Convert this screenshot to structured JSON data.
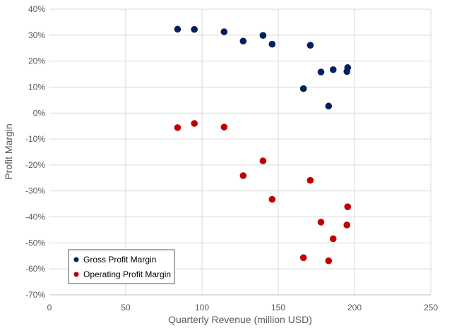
{
  "chart_data": {
    "type": "scatter",
    "xlabel": "Quarterly Revenue (million USD)",
    "ylabel": "Profit Margin",
    "xlim": [
      0,
      250
    ],
    "ylim": [
      -70,
      40
    ],
    "x_ticks": [
      "0",
      "50",
      "100",
      "150",
      "200",
      "250"
    ],
    "y_ticks": [
      "-70%",
      "-60%",
      "-50%",
      "-40%",
      "-30%",
      "-20%",
      "-10%",
      "0%",
      "10%",
      "20%",
      "30%",
      "40%"
    ],
    "grid": true,
    "legend_position": "bottom-left",
    "series": [
      {
        "name": "Gross Profit Margin",
        "color": "#002060",
        "points": [
          {
            "x": 84,
            "y": 32.3
          },
          {
            "x": 95,
            "y": 32.2
          },
          {
            "x": 114.5,
            "y": 31.3
          },
          {
            "x": 127,
            "y": 27.7
          },
          {
            "x": 140,
            "y": 29.9
          },
          {
            "x": 146,
            "y": 26.5
          },
          {
            "x": 171,
            "y": 26.1
          },
          {
            "x": 178,
            "y": 15.8
          },
          {
            "x": 186,
            "y": 16.7
          },
          {
            "x": 195,
            "y": 16.0
          },
          {
            "x": 195.5,
            "y": 17.5
          },
          {
            "x": 166.5,
            "y": 9.4
          },
          {
            "x": 183,
            "y": 2.7
          }
        ]
      },
      {
        "name": "Operating Profit Margin",
        "color": "#c00000",
        "points": [
          {
            "x": 84,
            "y": -5.6
          },
          {
            "x": 95,
            "y": -4.0
          },
          {
            "x": 114.5,
            "y": -5.4
          },
          {
            "x": 127,
            "y": -24.1
          },
          {
            "x": 140,
            "y": -18.4
          },
          {
            "x": 146,
            "y": -33.2
          },
          {
            "x": 171,
            "y": -25.9
          },
          {
            "x": 178,
            "y": -42.0
          },
          {
            "x": 186,
            "y": -48.4
          },
          {
            "x": 195,
            "y": -43.1
          },
          {
            "x": 195.5,
            "y": -36.1
          },
          {
            "x": 166.5,
            "y": -55.7
          },
          {
            "x": 183,
            "y": -56.9
          }
        ]
      }
    ]
  }
}
